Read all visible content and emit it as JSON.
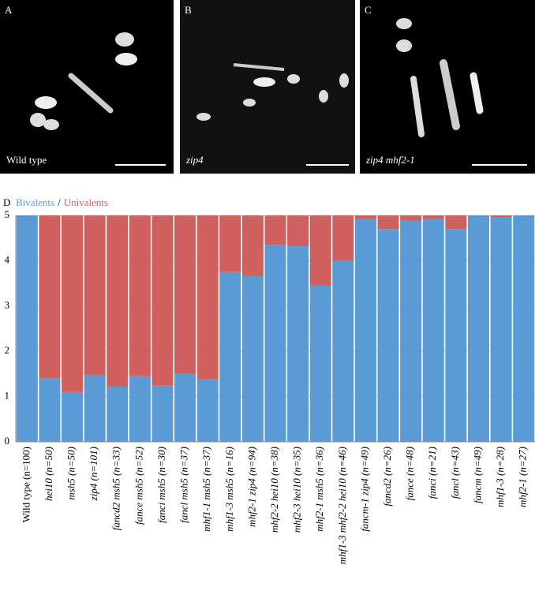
{
  "panels": [
    {
      "letter": "A",
      "caption": "Wild type"
    },
    {
      "letter": "B",
      "caption": "zip4"
    },
    {
      "letter": "C",
      "caption": "zip4 mhf2-1"
    }
  ],
  "chart_data": {
    "type": "stacked_bar",
    "letter": "D",
    "legend_separator": "/",
    "categories": [
      "Wild type (n=100)",
      "hei10 (n=50)",
      "msh5 (n=50)",
      "zip4 (n=101)",
      "fancd2 msh5 (n=33)",
      "fance msh5 (n=52)",
      "fanci msh5 (n=30)",
      "fancl msh5 (n=37)",
      "mhf1-1 msh5 (n=37)",
      "mhf1-3 msh5 (n=16)",
      "mhf2-1 zip4 (n=94)",
      "mhf2-2 hei10 (n=38)",
      "mhf2-3 hei10 (n=35)",
      "mhf2-1 msh5 (n=36)",
      "mhf1-3 mhf2-2 hei10 (n=46)",
      "fancm-1 zip4 (n=49)",
      "fancd2 (n=26)",
      "fance (n=48)",
      "fanci (n=21)",
      "fancl (n=43)",
      "fancm (n=49)",
      "mhf1-3 (n=28)",
      "mhf2-1 (n=27)"
    ],
    "category_italic": [
      false,
      true,
      true,
      true,
      true,
      true,
      true,
      true,
      true,
      true,
      true,
      true,
      true,
      true,
      true,
      true,
      true,
      true,
      true,
      true,
      true,
      true,
      true
    ],
    "series": [
      {
        "name": "Bivalents",
        "color": "#5b9bd5",
        "values": [
          5,
          1.4,
          1.1,
          1.47,
          1.22,
          1.45,
          1.24,
          1.5,
          1.38,
          3.75,
          3.66,
          4.35,
          4.32,
          3.45,
          4.0,
          4.92,
          4.7,
          4.88,
          4.92,
          4.7,
          5,
          4.95,
          5
        ]
      },
      {
        "name": "Univalents",
        "color": "#d0605e",
        "values": [
          0,
          3.6,
          3.9,
          3.53,
          3.78,
          3.55,
          3.76,
          3.5,
          3.62,
          1.25,
          1.34,
          0.65,
          0.68,
          1.55,
          1.0,
          0.08,
          0.3,
          0.12,
          0.08,
          0.3,
          0,
          0.05,
          0
        ]
      }
    ],
    "ylim": [
      0,
      5
    ],
    "yticks": [
      0,
      1,
      2,
      3,
      4,
      5
    ],
    "grid": true
  }
}
